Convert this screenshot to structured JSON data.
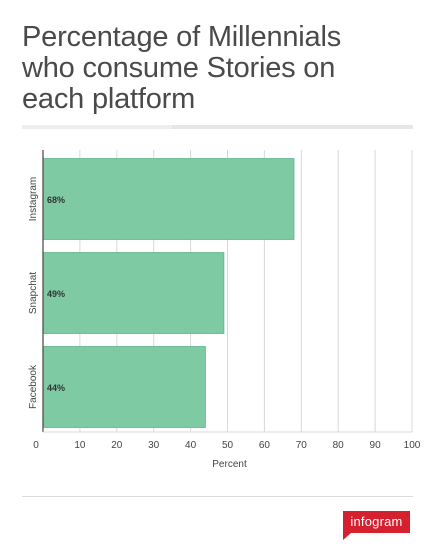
{
  "title_lines": [
    "Percentage of Millennials",
    "who consume Stories on",
    "each platform"
  ],
  "colors": {
    "bar": "#7ecba3",
    "bar_stroke": "#6bb991",
    "grid": "#d8d8d8",
    "axis": "#444444",
    "brand": "#d5202f"
  },
  "chart_data": {
    "type": "bar",
    "orientation": "horizontal",
    "categories": [
      "Instagram",
      "Snapchat",
      "Facebook"
    ],
    "values": [
      68,
      49,
      44
    ],
    "data_labels": [
      "68%",
      "49%",
      "44%"
    ],
    "xlabel": "Percent",
    "ylabel": "",
    "xlim": [
      0,
      100
    ],
    "xticks": [
      0,
      10,
      20,
      30,
      40,
      50,
      60,
      70,
      80,
      90,
      100
    ],
    "grid": true
  },
  "footer": {
    "logo_text": "infogram"
  }
}
